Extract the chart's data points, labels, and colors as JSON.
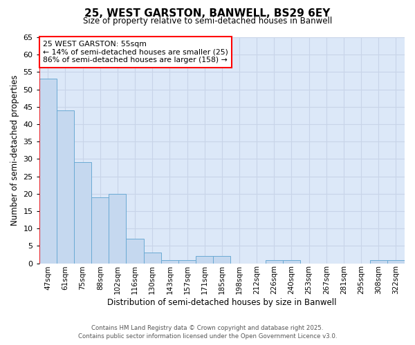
{
  "title_line1": "25, WEST GARSTON, BANWELL, BS29 6EY",
  "title_line2": "Size of property relative to semi-detached houses in Banwell",
  "xlabel": "Distribution of semi-detached houses by size in Banwell",
  "ylabel": "Number of semi-detached properties",
  "categories": [
    "47sqm",
    "61sqm",
    "75sqm",
    "88sqm",
    "102sqm",
    "116sqm",
    "130sqm",
    "143sqm",
    "157sqm",
    "171sqm",
    "185sqm",
    "198sqm",
    "212sqm",
    "226sqm",
    "240sqm",
    "253sqm",
    "267sqm",
    "281sqm",
    "295sqm",
    "308sqm",
    "322sqm"
  ],
  "values": [
    53,
    44,
    29,
    19,
    20,
    7,
    3,
    1,
    1,
    2,
    2,
    0,
    0,
    1,
    1,
    0,
    0,
    0,
    0,
    1,
    1
  ],
  "bar_color": "#c5d8ef",
  "bar_edge_color": "#6aaad4",
  "annotation_title": "25 WEST GARSTON: 55sqm",
  "annotation_line1": "← 14% of semi-detached houses are smaller (25)",
  "annotation_line2": "86% of semi-detached houses are larger (158) →",
  "annotation_box_color": "white",
  "annotation_box_edge_color": "red",
  "ylim": [
    0,
    65
  ],
  "yticks": [
    0,
    5,
    10,
    15,
    20,
    25,
    30,
    35,
    40,
    45,
    50,
    55,
    60,
    65
  ],
  "grid_color": "#c8d4e8",
  "ax_background_color": "#dce8f8",
  "fig_background_color": "#ffffff",
  "footer_line1": "Contains HM Land Registry data © Crown copyright and database right 2025.",
  "footer_line2": "Contains public sector information licensed under the Open Government Licence v3.0."
}
